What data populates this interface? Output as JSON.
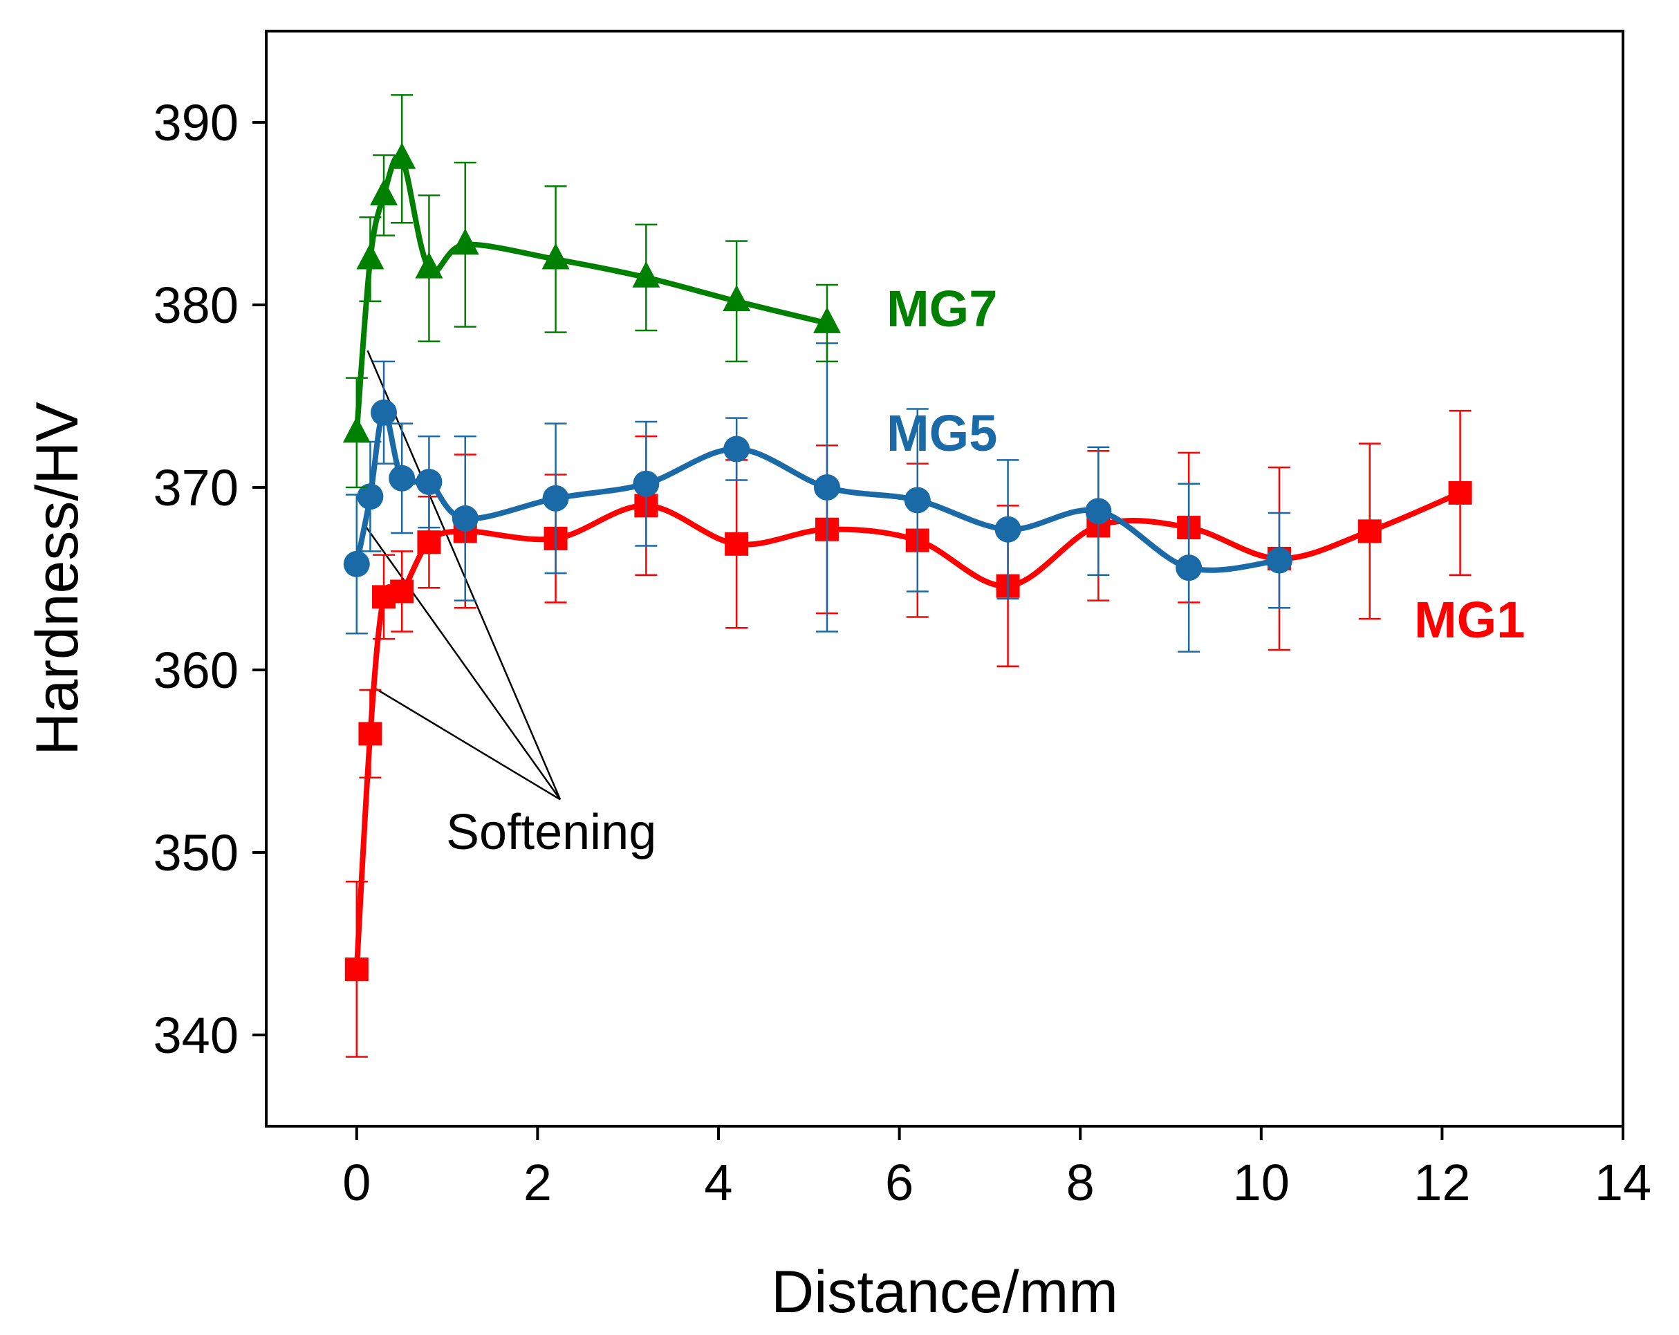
{
  "chart_data": {
    "type": "line",
    "title": "",
    "xlabel": "Distance/mm",
    "ylabel": "Hardness/HV",
    "xlim": [
      -1,
      14
    ],
    "ylim": [
      335,
      395
    ],
    "xticks": [
      0,
      2,
      4,
      6,
      8,
      10,
      12,
      14
    ],
    "yticks": [
      340,
      350,
      360,
      370,
      380,
      390
    ],
    "grid": false,
    "series": [
      {
        "name": "MG1",
        "color": "#ff0000",
        "marker": "square",
        "x": [
          0,
          0.15,
          0.3,
          0.5,
          0.8,
          1.2,
          2.2,
          3.2,
          4.2,
          5.2,
          6.2,
          7.2,
          8.2,
          9.2,
          10.2,
          11.2,
          12.2
        ],
        "y": [
          343.6,
          356.5,
          364.0,
          364.3,
          367.0,
          367.6,
          367.2,
          369.0,
          366.9,
          367.7,
          367.1,
          364.6,
          367.9,
          367.8,
          366.1,
          367.6,
          369.7
        ],
        "err": [
          4.8,
          2.4,
          2.3,
          2.2,
          2.5,
          4.2,
          3.5,
          3.8,
          4.6,
          4.6,
          4.2,
          4.4,
          4.1,
          4.1,
          5.0,
          4.8,
          4.5
        ]
      },
      {
        "name": "MG5",
        "color": "#1a6aa8",
        "marker": "circle",
        "x": [
          0,
          0.15,
          0.3,
          0.5,
          0.8,
          1.2,
          2.2,
          3.2,
          4.2,
          5.2,
          6.2,
          7.2,
          8.2,
          9.2,
          10.2
        ],
        "y": [
          365.8,
          369.5,
          374.1,
          370.5,
          370.3,
          368.3,
          369.4,
          370.2,
          372.1,
          370.0,
          369.3,
          367.7,
          368.7,
          365.6,
          366.0
        ],
        "err": [
          3.8,
          3.0,
          2.8,
          3.0,
          2.5,
          4.5,
          4.1,
          3.4,
          1.7,
          7.9,
          5.0,
          3.8,
          3.5,
          4.6,
          2.6
        ]
      },
      {
        "name": "MG7",
        "color": "#008000",
        "marker": "triangle",
        "x": [
          0,
          0.15,
          0.3,
          0.5,
          0.8,
          1.2,
          2.2,
          3.2,
          4.2,
          5.2
        ],
        "y": [
          373.0,
          382.5,
          386.0,
          388.0,
          382.0,
          383.3,
          382.5,
          381.5,
          380.2,
          379.0
        ],
        "err": [
          3.0,
          2.3,
          2.2,
          3.5,
          4.0,
          4.5,
          4.0,
          2.9,
          3.3,
          2.1
        ]
      }
    ],
    "annotations": [
      {
        "text": "Softening",
        "x": 2.3,
        "y": 351.5
      }
    ]
  }
}
